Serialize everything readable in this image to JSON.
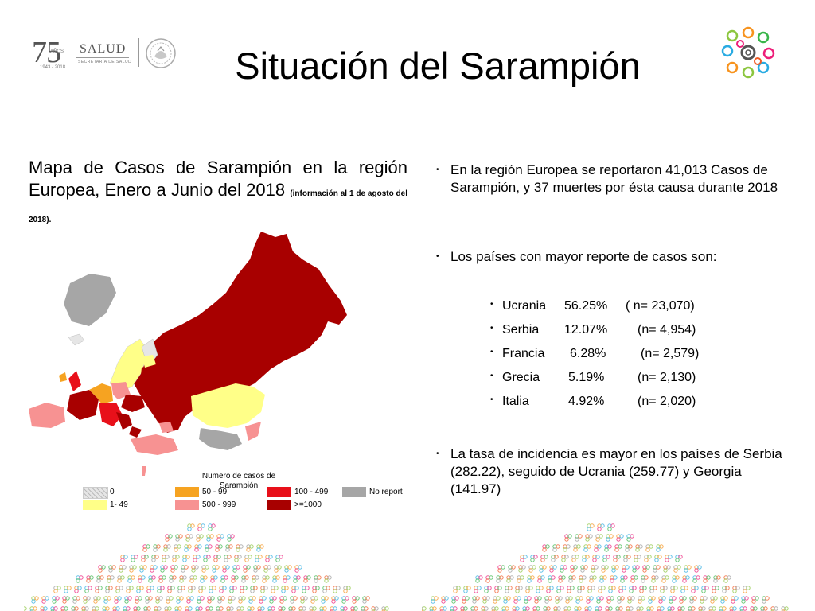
{
  "header": {
    "logo_number": "75",
    "logo_anos": "AÑOS",
    "logo_years": "1943 - 2018",
    "logo_salud": "SALUD",
    "logo_secretaria": "SECRETARÍA DE SALUD",
    "title": "Situación del Sarampión"
  },
  "left": {
    "heading_main": "Mapa de Casos de Sarampión en la región Europea, Enero a Junio del 2018",
    "heading_note": "(información al 1 de agosto del 2018).",
    "legend_title": "Numero de casos de Sarampión",
    "legend": [
      {
        "label": "0",
        "color": "#e6e6e6"
      },
      {
        "label": "1- 49",
        "color": "#ffff88"
      },
      {
        "label": "50 - 99",
        "color": "#f6a321"
      },
      {
        "label": "100 - 499",
        "color": "#f79292"
      },
      {
        "label": "500 - 999",
        "color": "#e8101a"
      },
      {
        "label": ">=1000",
        "color": "#a80000"
      },
      {
        "label": "No report",
        "color": "#a6a6a6"
      }
    ]
  },
  "right": {
    "bullet1": "En la región Europea se reportaron 41,013 Casos de Sarampión, y 37 muertes por ésta causa durante 2018",
    "bullet2": "Los países con mayor reporte de casos son:",
    "countries": [
      {
        "name": "Ucrania",
        "pct": "56.25%",
        "n": "( n= 23,070)"
      },
      {
        "name": "Serbia",
        "pct": "12.07%",
        "n": "(n= 4,954)"
      },
      {
        "name": "Francia",
        "pct": "6.28%",
        "n": "(n= 2,579)"
      },
      {
        "name": "Grecia",
        "pct": "5.19%",
        "n": "(n= 2,130)"
      },
      {
        "name": "Italia",
        "pct": "4.92%",
        "n": "(n= 2,020)"
      }
    ],
    "bullet3": "La tasa de incidencia es mayor en los países de Serbia (282.22), seguido de Ucrania (259.77) y Georgia (141.97)"
  },
  "colors": {
    "dark_red": "#a80000",
    "red": "#e8101a",
    "salmon": "#f79292",
    "orange": "#f6a321",
    "yellow": "#ffff88",
    "grey": "#a6a6a6"
  }
}
